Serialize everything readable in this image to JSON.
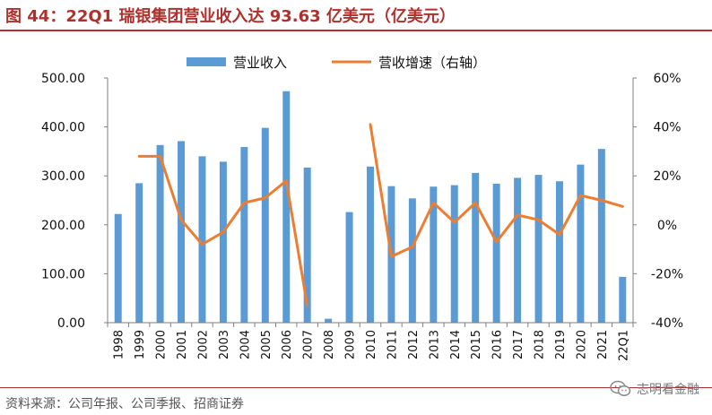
{
  "header": {
    "title": "图 44：22Q1 瑞银集团营业收入达 93.63 亿美元（亿美元）"
  },
  "footer": {
    "source": "资料来源：公司年报、公司季报、招商证券",
    "watermark": "志明看金融",
    "watermark_icon": "wechat-icon"
  },
  "chart_data": {
    "type": "bar",
    "title": "",
    "categories": [
      "1998",
      "1999",
      "2000",
      "2001",
      "2002",
      "2003",
      "2004",
      "2005",
      "2006",
      "2007",
      "2008",
      "2009",
      "2010",
      "2011",
      "2012",
      "2013",
      "2014",
      "2015",
      "2016",
      "2017",
      "2018",
      "2019",
      "2020",
      "2021",
      "22Q1"
    ],
    "series": [
      {
        "name": "营业收入",
        "type": "bar",
        "axis": "left",
        "color": "#5b9bd5",
        "values": [
          222,
          285,
          363,
          371,
          340,
          329,
          359,
          398,
          473,
          317,
          8,
          226,
          319,
          279,
          254,
          278,
          281,
          306,
          284,
          296,
          302,
          289,
          323,
          355,
          93.63
        ]
      },
      {
        "name": "营收增速（右轴）",
        "type": "line",
        "axis": "right",
        "color": "#ed7d31",
        "values": [
          null,
          28,
          28,
          2,
          -8,
          -3,
          9,
          11,
          18,
          -33,
          null,
          null,
          41,
          -13,
          -9,
          9,
          1,
          9,
          -7,
          4,
          2,
          -4,
          12,
          10,
          7.5
        ]
      }
    ],
    "y_left": {
      "ylim": [
        0,
        500
      ],
      "ticks": [
        "0.00",
        "100.00",
        "200.00",
        "300.00",
        "400.00",
        "500.00"
      ]
    },
    "y_right": {
      "ylim": [
        -40,
        60
      ],
      "ticks": [
        "-40%",
        "-20%",
        "0%",
        "20%",
        "40%",
        "60%"
      ]
    },
    "legend_position": "top-center",
    "grid": false
  }
}
